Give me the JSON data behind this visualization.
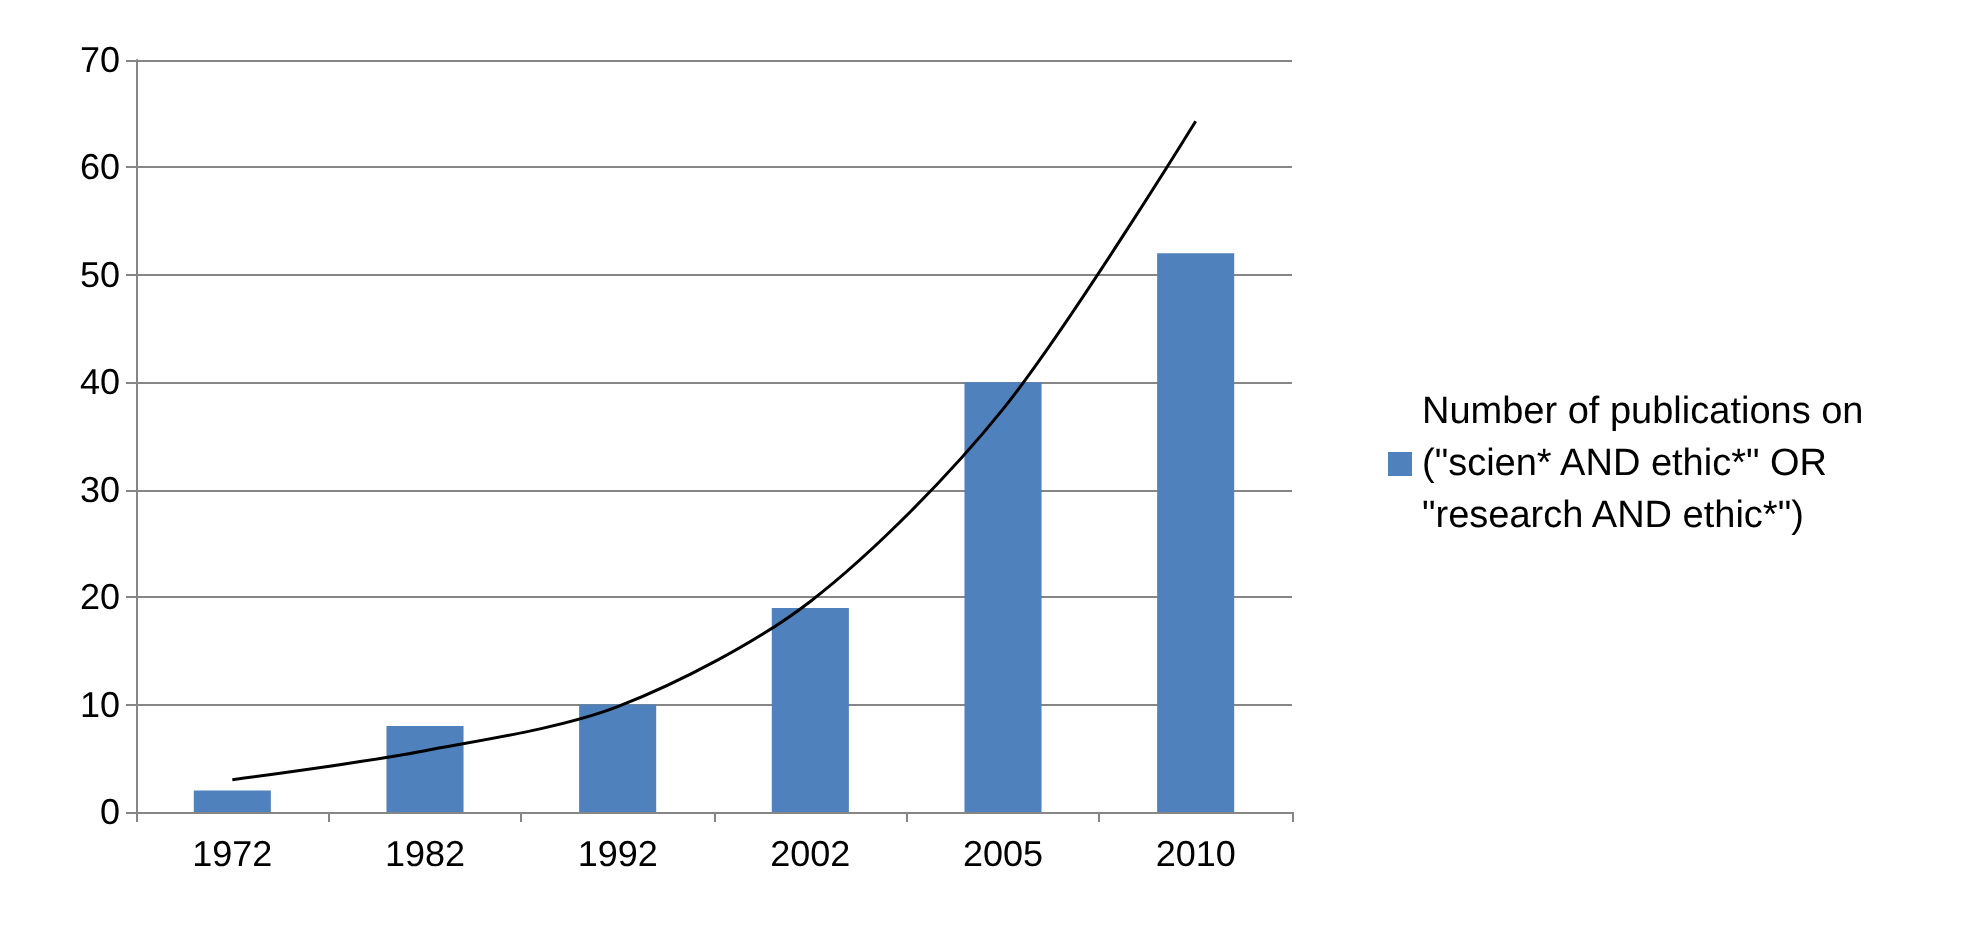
{
  "chart_data": {
    "type": "bar",
    "categories": [
      "1972",
      "1982",
      "1992",
      "2002",
      "2005",
      "2010"
    ],
    "series": [
      {
        "name": "Number of publications on (\"scien* AND ethic*\" OR \"research AND ethic*\")",
        "color": "#4f81bd",
        "values": [
          2,
          8,
          10,
          19,
          40,
          52
        ]
      },
      {
        "type": "line",
        "color": "#000000",
        "marker": "none",
        "values": [
          3,
          5.7,
          9.8,
          19.6,
          37.5,
          64.3
        ]
      }
    ],
    "ylim": [
      0,
      70
    ],
    "yticks": [
      0,
      10,
      20,
      30,
      40,
      50,
      60,
      70
    ],
    "grid": "y",
    "legend": "right"
  }
}
